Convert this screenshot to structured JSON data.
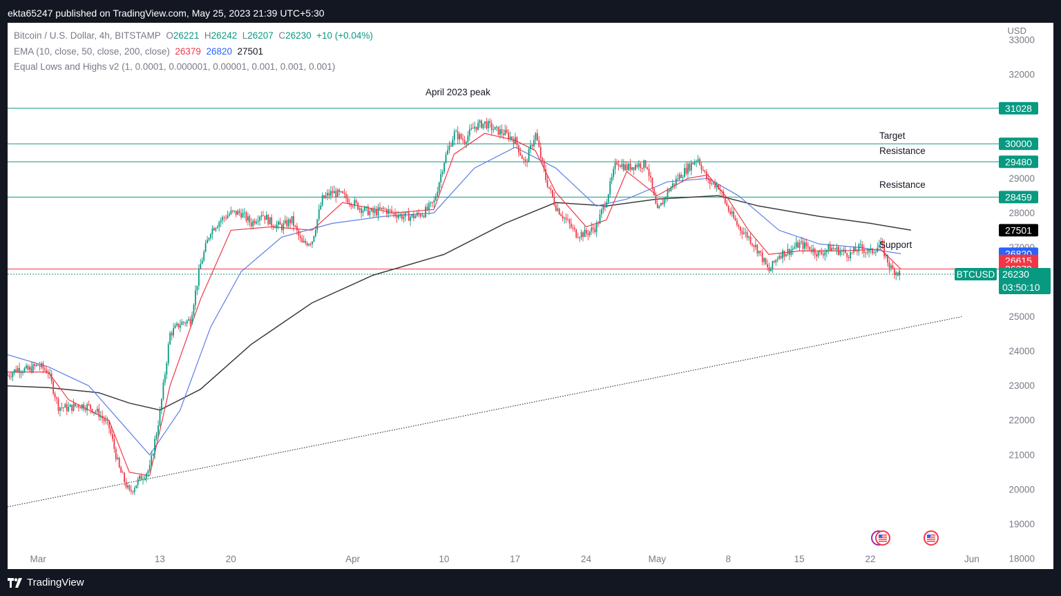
{
  "header": {
    "published": "ekta65247 published on TradingView.com, May 25, 2023 21:39 UTC+5:30"
  },
  "footer": {
    "brand": "TradingView"
  },
  "legend": {
    "symbol": "Bitcoin / U.S. Dollar, 4h, BITSTAMP",
    "o_label": "O",
    "o": "26221",
    "h_label": "H",
    "h": "26242",
    "l_label": "L",
    "l": "26207",
    "c_label": "C",
    "c": "26230",
    "change": "+10 (+0.04%)",
    "ema_label": "EMA (10, close, 50, close, 200, close)",
    "ema10": "26379",
    "ema50": "26820",
    "ema200": "27501",
    "indicator": "Equal Lows and Highs v2 (1, 0.0001, 0.000001, 0.00001, 0.001, 0.001, 0.001)"
  },
  "colors": {
    "up": "#089981",
    "down": "#f23645",
    "ema10": "#f23645",
    "ema50": "#5b7ee5",
    "ema200": "#3a3a3a",
    "hline": "#089981",
    "redline": "#f23645",
    "black_badge": "#000000",
    "blue_badge": "#2962ff"
  },
  "chart_data": {
    "type": "candlestick",
    "symbol": "BTCUSD",
    "currency": "USD",
    "ylim": [
      17700,
      33500
    ],
    "y_ticks": [
      18000,
      19000,
      20000,
      21000,
      22000,
      23000,
      24000,
      25000,
      26000,
      27000,
      28000,
      29000,
      30000,
      31000,
      32000,
      33000
    ],
    "x_ticks": [
      {
        "label": "Mar",
        "date": "2023-03-01"
      },
      {
        "label": "13",
        "date": "2023-03-13"
      },
      {
        "label": "20",
        "date": "2023-03-20"
      },
      {
        "label": "Apr",
        "date": "2023-04-01"
      },
      {
        "label": "10",
        "date": "2023-04-10"
      },
      {
        "label": "17",
        "date": "2023-04-17"
      },
      {
        "label": "24",
        "date": "2023-04-24"
      },
      {
        "label": "May",
        "date": "2023-05-01"
      },
      {
        "label": "8",
        "date": "2023-05-08"
      },
      {
        "label": "15",
        "date": "2023-05-15"
      },
      {
        "label": "22",
        "date": "2023-05-22"
      },
      {
        "label": "Jun",
        "date": "2023-06-01"
      }
    ],
    "price_series": [
      [
        "2023-02-26",
        23300
      ],
      [
        "2023-02-27",
        23500
      ],
      [
        "2023-02-28",
        23450
      ],
      [
        "2023-03-01",
        23600
      ],
      [
        "2023-03-02",
        23400
      ],
      [
        "2023-03-03",
        22400
      ],
      [
        "2023-03-04",
        22350
      ],
      [
        "2023-03-05",
        22450
      ],
      [
        "2023-03-06",
        22400
      ],
      [
        "2023-03-07",
        22200
      ],
      [
        "2023-03-08",
        21800
      ],
      [
        "2023-03-09",
        20600
      ],
      [
        "2023-03-10",
        19900
      ],
      [
        "2023-03-11",
        20300
      ],
      [
        "2023-03-12",
        20600
      ],
      [
        "2023-03-13",
        22200
      ],
      [
        "2023-03-14",
        24500
      ],
      [
        "2023-03-15",
        24800
      ],
      [
        "2023-03-16",
        24900
      ],
      [
        "2023-03-17",
        26500
      ],
      [
        "2023-03-18",
        27500
      ],
      [
        "2023-03-19",
        27800
      ],
      [
        "2023-03-20",
        28000
      ],
      [
        "2023-03-21",
        28000
      ],
      [
        "2023-03-22",
        27700
      ],
      [
        "2023-03-23",
        28000
      ],
      [
        "2023-03-24",
        27700
      ],
      [
        "2023-03-25",
        27600
      ],
      [
        "2023-03-26",
        27800
      ],
      [
        "2023-03-27",
        27100
      ],
      [
        "2023-03-28",
        27200
      ],
      [
        "2023-03-29",
        28400
      ],
      [
        "2023-03-30",
        28600
      ],
      [
        "2023-03-31",
        28500
      ],
      [
        "2023-04-01",
        28300
      ],
      [
        "2023-04-02",
        28100
      ],
      [
        "2023-04-03",
        28000
      ],
      [
        "2023-04-04",
        28100
      ],
      [
        "2023-04-05",
        28000
      ],
      [
        "2023-04-06",
        27900
      ],
      [
        "2023-04-07",
        27900
      ],
      [
        "2023-04-08",
        28000
      ],
      [
        "2023-04-09",
        28300
      ],
      [
        "2023-04-10",
        29500
      ],
      [
        "2023-04-11",
        30300
      ],
      [
        "2023-04-12",
        30100
      ],
      [
        "2023-04-13",
        30500
      ],
      [
        "2023-04-14",
        30600
      ],
      [
        "2023-04-15",
        30400
      ],
      [
        "2023-04-16",
        30300
      ],
      [
        "2023-04-17",
        30100
      ],
      [
        "2023-04-18",
        29400
      ],
      [
        "2023-04-19",
        30300
      ],
      [
        "2023-04-20",
        29000
      ],
      [
        "2023-04-21",
        28200
      ],
      [
        "2023-04-22",
        27800
      ],
      [
        "2023-04-23",
        27400
      ],
      [
        "2023-04-24",
        27400
      ],
      [
        "2023-04-25",
        27600
      ],
      [
        "2023-04-26",
        28400
      ],
      [
        "2023-04-27",
        29500
      ],
      [
        "2023-04-28",
        29300
      ],
      [
        "2023-04-29",
        29400
      ],
      [
        "2023-04-30",
        29400
      ],
      [
        "2023-05-01",
        28000
      ],
      [
        "2023-05-02",
        28600
      ],
      [
        "2023-05-03",
        29000
      ],
      [
        "2023-05-04",
        29300
      ],
      [
        "2023-05-05",
        29600
      ],
      [
        "2023-05-06",
        28900
      ],
      [
        "2023-05-07",
        28800
      ],
      [
        "2023-05-08",
        28100
      ],
      [
        "2023-05-09",
        27600
      ],
      [
        "2023-05-10",
        27300
      ],
      [
        "2023-05-11",
        26900
      ],
      [
        "2023-05-12",
        26300
      ],
      [
        "2023-05-13",
        26800
      ],
      [
        "2023-05-14",
        26900
      ],
      [
        "2023-05-15",
        27100
      ],
      [
        "2023-05-16",
        27000
      ],
      [
        "2023-05-17",
        26800
      ],
      [
        "2023-05-18",
        27000
      ],
      [
        "2023-05-19",
        26900
      ],
      [
        "2023-05-20",
        26800
      ],
      [
        "2023-05-21",
        27000
      ],
      [
        "2023-05-22",
        26850
      ],
      [
        "2023-05-23",
        27100
      ],
      [
        "2023-05-24",
        26400
      ],
      [
        "2023-05-25",
        26230
      ]
    ],
    "ema10": [
      [
        "2023-02-26",
        23400
      ],
      [
        "2023-03-02",
        23400
      ],
      [
        "2023-03-04",
        22600
      ],
      [
        "2023-03-08",
        22000
      ],
      [
        "2023-03-10",
        20500
      ],
      [
        "2023-03-12",
        20400
      ],
      [
        "2023-03-14",
        23000
      ],
      [
        "2023-03-17",
        25500
      ],
      [
        "2023-03-20",
        27500
      ],
      [
        "2023-03-24",
        27600
      ],
      [
        "2023-03-28",
        27500
      ],
      [
        "2023-03-31",
        28300
      ],
      [
        "2023-04-05",
        28000
      ],
      [
        "2023-04-09",
        28100
      ],
      [
        "2023-04-11",
        29700
      ],
      [
        "2023-04-14",
        30300
      ],
      [
        "2023-04-17",
        30100
      ],
      [
        "2023-04-19",
        29800
      ],
      [
        "2023-04-21",
        28600
      ],
      [
        "2023-04-24",
        27600
      ],
      [
        "2023-04-26",
        27800
      ],
      [
        "2023-04-28",
        29200
      ],
      [
        "2023-05-01",
        28500
      ],
      [
        "2023-05-04",
        29000
      ],
      [
        "2023-05-06",
        29100
      ],
      [
        "2023-05-08",
        28400
      ],
      [
        "2023-05-10",
        27500
      ],
      [
        "2023-05-12",
        26800
      ],
      [
        "2023-05-15",
        26900
      ],
      [
        "2023-05-19",
        26900
      ],
      [
        "2023-05-23",
        26950
      ],
      [
        "2023-05-25",
        26379
      ]
    ],
    "ema50": [
      [
        "2023-02-26",
        23900
      ],
      [
        "2023-03-02",
        23550
      ],
      [
        "2023-03-06",
        23000
      ],
      [
        "2023-03-09",
        22000
      ],
      [
        "2023-03-12",
        21000
      ],
      [
        "2023-03-15",
        22300
      ],
      [
        "2023-03-18",
        24700
      ],
      [
        "2023-03-21",
        26300
      ],
      [
        "2023-03-25",
        27300
      ],
      [
        "2023-03-30",
        27700
      ],
      [
        "2023-04-04",
        27900
      ],
      [
        "2023-04-09",
        28000
      ],
      [
        "2023-04-13",
        29300
      ],
      [
        "2023-04-17",
        29900
      ],
      [
        "2023-04-21",
        29300
      ],
      [
        "2023-04-25",
        28200
      ],
      [
        "2023-04-28",
        28400
      ],
      [
        "2023-05-02",
        28900
      ],
      [
        "2023-05-06",
        29000
      ],
      [
        "2023-05-09",
        28500
      ],
      [
        "2023-05-13",
        27500
      ],
      [
        "2023-05-17",
        27100
      ],
      [
        "2023-05-21",
        27000
      ],
      [
        "2023-05-25",
        26820
      ]
    ],
    "ema200": [
      [
        "2023-02-26",
        23000
      ],
      [
        "2023-03-02",
        22950
      ],
      [
        "2023-03-07",
        22800
      ],
      [
        "2023-03-10",
        22500
      ],
      [
        "2023-03-13",
        22300
      ],
      [
        "2023-03-17",
        22900
      ],
      [
        "2023-03-22",
        24200
      ],
      [
        "2023-03-28",
        25400
      ],
      [
        "2023-04-03",
        26200
      ],
      [
        "2023-04-10",
        26800
      ],
      [
        "2023-04-16",
        27700
      ],
      [
        "2023-04-21",
        28300
      ],
      [
        "2023-04-26",
        28200
      ],
      [
        "2023-05-01",
        28400
      ],
      [
        "2023-05-07",
        28500
      ],
      [
        "2023-05-11",
        28200
      ],
      [
        "2023-05-17",
        27900
      ],
      [
        "2023-05-22",
        27700
      ],
      [
        "2023-05-26",
        27501
      ]
    ],
    "horizontal_levels": [
      {
        "value": 31028,
        "label": "31028",
        "annotation": "April 2023 peak"
      },
      {
        "value": 30000,
        "label": "30000",
        "annotation": "Target"
      },
      {
        "value": 29480,
        "label": "29480",
        "annotation": "Resistance"
      },
      {
        "value": 28459,
        "label": "28459",
        "annotation": "Resistance"
      },
      {
        "value": 26379,
        "label": "26379",
        "annotation": "Support"
      }
    ],
    "trendline": {
      "from": [
        "2023-02-26",
        19500
      ],
      "to": [
        "2023-05-31",
        25000
      ],
      "style": "dotted"
    },
    "price_badges": [
      {
        "value": 27501,
        "label": "27501",
        "color": "#000000"
      },
      {
        "value": 26820,
        "label": "26820",
        "color": "#2962ff"
      },
      {
        "value": 26615,
        "label": "26615",
        "color": "#f23645"
      },
      {
        "value": 26379,
        "label": "26379",
        "color": "#f23645"
      }
    ],
    "last_price": {
      "value": 26230,
      "label": "26230",
      "countdown": "03:50:10",
      "symbol_tag": "BTCUSD"
    },
    "event_icons": [
      {
        "date": "2023-05-26",
        "name": "us-flag-icon"
      },
      {
        "date": "2023-05-30",
        "name": "us-flag-icon"
      }
    ]
  }
}
